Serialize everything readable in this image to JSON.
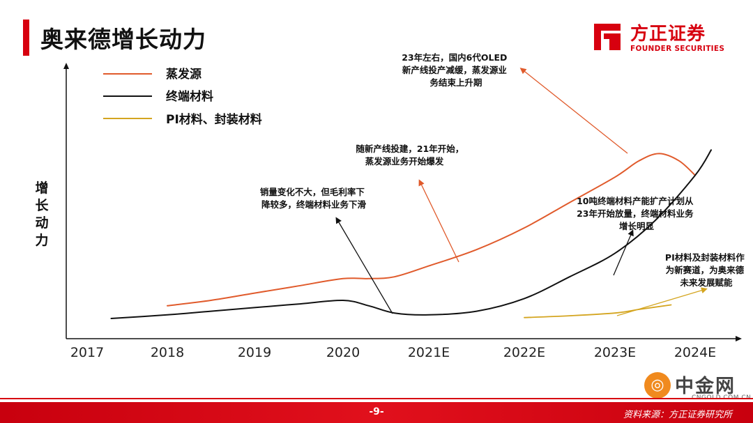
{
  "slide": {
    "title": "奥来德增长动力",
    "page_number": "-9-",
    "source_note": "资料来源：方正证券研究所"
  },
  "brand": {
    "name_cn": "方正证券",
    "name_en": "FOUNDER SECURITIES",
    "color": "#d7000f"
  },
  "watermark": {
    "name": "中金网",
    "domain": "CNGOLD.COM.CN",
    "icon_glyph": "◎"
  },
  "chart_data": {
    "type": "line",
    "title": "",
    "xlabel": "",
    "ylabel": "增长动力",
    "categories": [
      "2017",
      "2018",
      "2019",
      "2020",
      "2021E",
      "2022E",
      "2023E",
      "2024E"
    ],
    "ylim": [
      0,
      100
    ],
    "grid": false,
    "legend_placement": "top-left",
    "series": [
      {
        "name": "蒸发源",
        "color": "#e05a2b",
        "x": [
          1.0,
          1.5,
          2.0,
          2.5,
          3.0,
          3.3,
          3.6,
          4.0,
          4.5,
          5.0,
          5.5,
          6.0,
          6.3,
          6.55,
          6.8,
          7.0
        ],
        "values": [
          12,
          15,
          19,
          23,
          27,
          27,
          28,
          34,
          43,
          55,
          69,
          83,
          92,
          96,
          92,
          84
        ]
      },
      {
        "name": "终端材料",
        "color": "#111111",
        "x": [
          0.3,
          1.0,
          1.5,
          2.0,
          2.5,
          3.0,
          3.3,
          3.6,
          4.0,
          4.5,
          5.0,
          5.5,
          6.0,
          6.5,
          7.0,
          7.2
        ],
        "values": [
          5,
          7,
          9,
          11,
          13,
          15,
          12,
          8,
          7,
          9,
          16,
          28,
          41,
          59,
          84,
          98
        ]
      },
      {
        "name": "PI材料、封装材料",
        "color": "#d4a520",
        "x": [
          5.0,
          5.5,
          6.0,
          6.3,
          6.7
        ],
        "values": [
          5.5,
          6.5,
          8,
          10,
          12.5
        ]
      }
    ],
    "annotations": [
      {
        "lines": [
          "23年左右，国内6代OLED",
          "新产线投产减缓，蒸发源业",
          "务结束上升期"
        ]
      },
      {
        "lines": [
          "随新产线投建，21年开始，",
          "蒸发源业务开始爆发"
        ]
      },
      {
        "lines": [
          "销量变化不大，但毛利率下",
          "降较多，终端材料业务下滑"
        ]
      },
      {
        "lines": [
          "10吨终端材料产能扩产计划从",
          "23年开始放量，终端材料业务",
          "增长明显"
        ]
      },
      {
        "lines": [
          "PI材料及封装材料作",
          "为新赛道，为奥来德",
          "未来发展赋能"
        ]
      }
    ]
  }
}
